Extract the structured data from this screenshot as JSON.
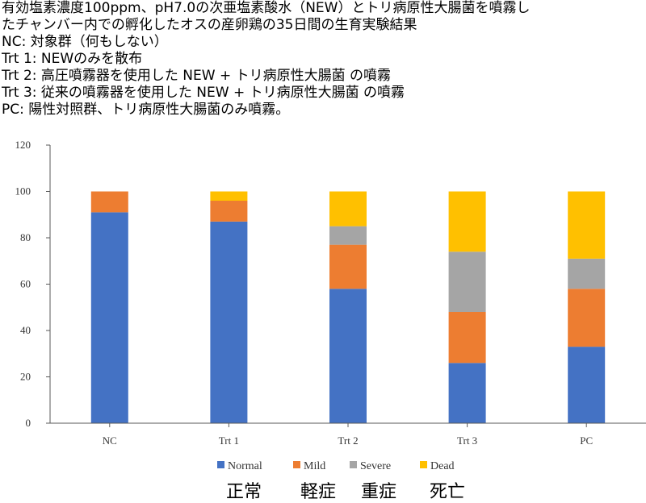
{
  "caption": {
    "lines": [
      "有効塩素濃度100ppm、pH7.0の次亜塩素酸水（NEW）とトリ病原性大腸菌を噴霧し",
      "たチャンバー内での孵化したオスの産卵鶏の35日間の生育実験結果",
      "NC: 対象群（何もしない）",
      "Trt 1: NEWのみを散布",
      "Trt 2: 高圧噴霧器を使用した NEW + トリ病原性大腸菌 の噴霧",
      "Trt 3: 従来の噴霧器を使用した NEW + トリ病原性大腸菌 の噴霧",
      "PC: 陽性対照群、トリ病原性大腸菌のみ噴霧。"
    ]
  },
  "chart_data": {
    "type": "bar",
    "stacked": true,
    "categories": [
      "NC",
      "Trt 1",
      "Trt 2",
      "Trt 3",
      "PC"
    ],
    "series": [
      {
        "name": "Normal",
        "color": "#4472C4",
        "values": [
          91,
          87,
          58,
          26,
          33
        ]
      },
      {
        "name": "Mild",
        "color": "#ED7D31",
        "values": [
          9,
          9,
          19,
          22,
          25
        ]
      },
      {
        "name": "Severe",
        "color": "#A5A5A5",
        "values": [
          0,
          0,
          8,
          26,
          13
        ]
      },
      {
        "name": "Dead",
        "color": "#FFC000",
        "values": [
          0,
          4,
          15,
          26,
          29
        ]
      }
    ],
    "ylim": [
      0,
      120
    ],
    "yticks": [
      0,
      20,
      40,
      60,
      80,
      100,
      120
    ],
    "grid": false,
    "legend": "bottom",
    "title": "",
    "xlabel": "",
    "ylabel": ""
  },
  "legend_japanese": [
    "正常",
    "軽症",
    "重症",
    "死亡"
  ]
}
